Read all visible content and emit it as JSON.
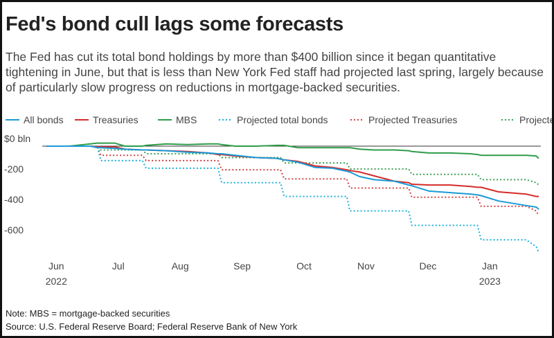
{
  "chart_data": {
    "type": "line",
    "title": "Fed's bond cull lags some forecasts",
    "subtitle": "The Fed has cut its total bond holdings by more than $400 billion since it began quantitative tightening in June, but that is less than New York Fed staff had projected last spring, largely because of particularly slow progress on reductions in mortgage-backed securities.",
    "notes": [
      "Note: MBS = mortgage-backed securities",
      "Source: U.S. Federal Reserve Board; Federal Reserve Bank of New York"
    ],
    "x": [
      -0.16,
      0.21,
      0.55,
      0.66,
      0.72,
      0.94,
      1.11,
      1.39,
      1.45,
      1.78,
      2.12,
      2.46,
      2.61,
      2.67,
      2.89,
      3.23,
      3.56,
      3.62,
      3.68,
      3.9,
      4.18,
      4.46,
      4.69,
      4.74,
      4.9,
      5.13,
      5.46,
      5.69,
      5.74,
      6.02,
      6.36,
      6.69,
      6.8,
      6.86,
      7.14,
      7.59,
      7.75,
      7.79
    ],
    "xlim": [
      -0.16,
      7.79
    ],
    "xticks": [
      {
        "value": 0,
        "label": "Jun"
      },
      {
        "value": 1,
        "label": "Jul"
      },
      {
        "value": 2,
        "label": "Aug"
      },
      {
        "value": 3,
        "label": "Sep"
      },
      {
        "value": 4,
        "label": "Oct"
      },
      {
        "value": 5,
        "label": "Nov"
      },
      {
        "value": 6,
        "label": "Dec"
      },
      {
        "value": 7,
        "label": "Jan"
      }
    ],
    "year_labels": [
      {
        "value": 0,
        "label": "2022"
      },
      {
        "value": 7,
        "label": "2023"
      }
    ],
    "ylim": [
      -700,
      50
    ],
    "yticks": [
      {
        "value": 0,
        "label": "$0 bln"
      },
      {
        "value": -200,
        "label": "-200"
      },
      {
        "value": -400,
        "label": "-400"
      },
      {
        "value": -600,
        "label": "-600"
      }
    ],
    "zero_line": true,
    "series": [
      {
        "name": "All bonds",
        "color": "#1a9ad6",
        "style": "solid",
        "values": [
          0,
          0,
          0,
          -10,
          -10,
          -15,
          -20,
          -25,
          -25,
          -30,
          -40,
          -45,
          -50,
          -50,
          -60,
          -75,
          -80,
          -85,
          -90,
          -105,
          -140,
          -145,
          -165,
          -170,
          -200,
          -220,
          -230,
          -255,
          -260,
          -295,
          -305,
          -315,
          -320,
          -325,
          -360,
          -390,
          -400,
          -415
        ]
      },
      {
        "name": "Treasuries",
        "color": "#d42b2b",
        "style": "solid",
        "values": [
          0,
          0,
          0,
          -5,
          -5,
          -5,
          -20,
          -25,
          -25,
          -30,
          -35,
          -45,
          -55,
          -55,
          -65,
          -75,
          -80,
          -85,
          -90,
          -100,
          -130,
          -140,
          -155,
          -160,
          -170,
          -195,
          -230,
          -240,
          -250,
          -255,
          -255,
          -265,
          -270,
          -270,
          -300,
          -315,
          -330,
          -330
        ]
      },
      {
        "name": "MBS",
        "color": "#2e9c49",
        "style": "solid",
        "values": [
          0,
          0,
          15,
          20,
          20,
          20,
          0,
          0,
          5,
          15,
          10,
          15,
          15,
          10,
          0,
          0,
          5,
          5,
          5,
          -10,
          -10,
          -10,
          -10,
          -10,
          -20,
          -25,
          -25,
          -30,
          -35,
          -45,
          -45,
          -50,
          -55,
          -60,
          -60,
          -60,
          -65,
          -80
        ]
      },
      {
        "name": "Projected total bonds",
        "color": "#1ab0d8",
        "style": "dotted",
        "values": [
          0,
          0,
          0,
          0,
          -95,
          -95,
          -95,
          -95,
          -145,
          -145,
          -145,
          -145,
          -145,
          -240,
          -240,
          -240,
          -240,
          -240,
          -330,
          -330,
          -330,
          -330,
          -330,
          -425,
          -425,
          -425,
          -425,
          -425,
          -520,
          -520,
          -520,
          -520,
          -520,
          -615,
          -615,
          -615,
          -660,
          -700
        ]
      },
      {
        "name": "Projected Treasuries",
        "color": "#d04040",
        "style": "dotted",
        "values": [
          0,
          0,
          0,
          0,
          -60,
          -60,
          -60,
          -60,
          -95,
          -95,
          -95,
          -95,
          -95,
          -155,
          -155,
          -155,
          -155,
          -155,
          -215,
          -215,
          -215,
          -215,
          -215,
          -275,
          -275,
          -275,
          -275,
          -275,
          -335,
          -335,
          -335,
          -335,
          -335,
          -395,
          -395,
          -395,
          -425,
          -455
        ]
      },
      {
        "name": "Projected MBS",
        "color": "#3aa050",
        "style": "dotted",
        "values": [
          0,
          0,
          0,
          0,
          -25,
          -25,
          -25,
          -25,
          -50,
          -50,
          -50,
          -50,
          -50,
          -75,
          -75,
          -75,
          -75,
          -75,
          -110,
          -110,
          -110,
          -110,
          -110,
          -150,
          -150,
          -150,
          -150,
          -150,
          -185,
          -185,
          -185,
          -185,
          -185,
          -220,
          -220,
          -220,
          -240,
          -255
        ]
      }
    ]
  }
}
